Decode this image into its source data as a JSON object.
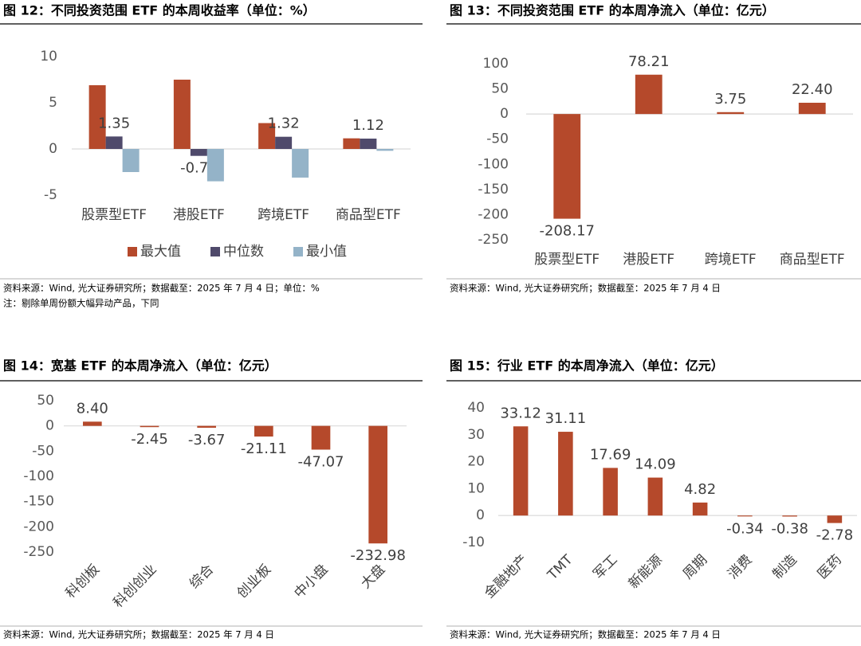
{
  "chart_data": [
    {
      "type": "grouped-bar",
      "title": "图 12：不同投资范围 ETF 的本周收益率（单位：%）",
      "categories": [
        "股票型ETF",
        "港股ETF",
        "跨境ETF",
        "商品型ETF"
      ],
      "series": [
        {
          "name": "最大值",
          "color": "#b5492b",
          "values": [
            6.9,
            7.5,
            2.8,
            1.15
          ]
        },
        {
          "name": "中位数",
          "color": "#4f4a6b",
          "values": [
            1.35,
            -0.75,
            1.32,
            1.12
          ],
          "show_labels": true
        },
        {
          "name": "最小值",
          "color": "#94b3c8",
          "values": [
            -2.5,
            -3.5,
            -3.1,
            -0.2
          ]
        }
      ],
      "ylim": [
        -5,
        10
      ],
      "yticks": [
        -5,
        0,
        5,
        10
      ],
      "legend": "bottom",
      "source": "资料来源：Wind, 光大证券研究所；数据截至：2025 年 7 月 4 日；单位：%",
      "note": "注：剔除单周份额大幅异动产品，下同"
    },
    {
      "type": "bar",
      "title": "图 13：不同投资范围 ETF 的本周净流入（单位：亿元）",
      "categories": [
        "股票型ETF",
        "港股ETF",
        "跨境ETF",
        "商品型ETF"
      ],
      "values": [
        -208.17,
        78.21,
        3.75,
        22.4
      ],
      "value_labels": [
        "-208.17",
        "78.21",
        "3.75",
        "22.40"
      ],
      "color": "#b5492b",
      "ylim": [
        -250,
        100
      ],
      "yticks": [
        -250,
        -200,
        -150,
        -100,
        -50,
        0,
        50,
        100
      ],
      "source": "资料来源：Wind, 光大证券研究所；数据截至：2025 年 7 月 4 日"
    },
    {
      "type": "bar",
      "title": "图 14：宽基 ETF 的本周净流入（单位：亿元）",
      "categories": [
        "科创板",
        "科创创业",
        "综合",
        "创业板",
        "中小盘",
        "大盘"
      ],
      "values": [
        8.4,
        -2.45,
        -3.67,
        -21.11,
        -47.07,
        -232.98
      ],
      "value_labels": [
        "8.40",
        "-2.45",
        "-3.67",
        "-21.11",
        "-47.07",
        "-232.98"
      ],
      "color": "#b5492b",
      "ylim": [
        -250,
        50
      ],
      "yticks": [
        -250,
        -200,
        -150,
        -100,
        -50,
        0,
        50
      ],
      "rotate_labels": true,
      "source": "资料来源：Wind, 光大证券研究所；数据截至：2025 年 7 月 4 日"
    },
    {
      "type": "bar",
      "title": "图 15：行业 ETF 的本周净流入（单位：亿元）",
      "categories": [
        "金融地产",
        "TMT",
        "军工",
        "新能源",
        "周期",
        "消费",
        "制造",
        "医药"
      ],
      "values": [
        33.12,
        31.11,
        17.69,
        14.09,
        4.82,
        -0.34,
        -0.38,
        -2.78
      ],
      "color": "#b5492b",
      "ylim": [
        -10,
        40
      ],
      "yticks": [
        -10,
        0,
        10,
        20,
        30,
        40
      ],
      "rotate_labels": true,
      "source": "资料来源：Wind, 光大证券研究所；数据截至：2025 年 7 月 4 日"
    }
  ]
}
